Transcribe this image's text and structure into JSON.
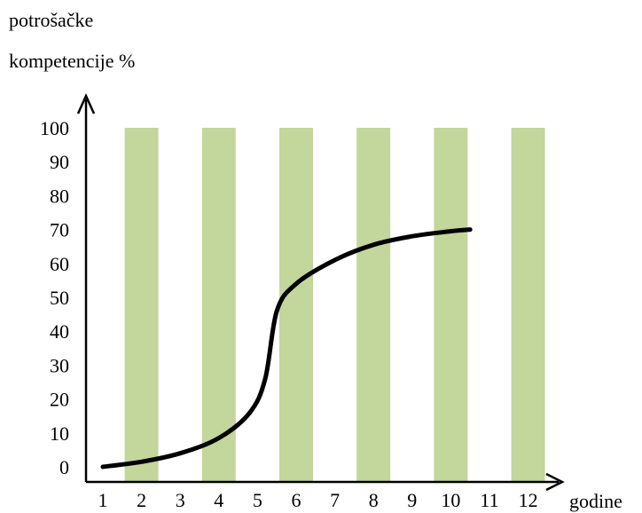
{
  "chart_data": {
    "type": "line",
    "ylabel_lines": [
      "potrošačke",
      "kompetencije %"
    ],
    "xlabel": "godine",
    "x_categories": [
      "1",
      "2",
      "3",
      "4",
      "5",
      "6",
      "7",
      "8",
      "9",
      "10",
      "11",
      "12"
    ],
    "y_ticks": [
      "0",
      "10",
      "20",
      "30",
      "40",
      "50",
      "60",
      "70",
      "80",
      "90",
      "100"
    ],
    "ylim": [
      0,
      100
    ],
    "xlim": [
      1,
      12
    ],
    "bars": {
      "color": "#c3d69b",
      "positions": [
        2,
        4,
        6,
        8,
        10,
        12
      ],
      "values": [
        100,
        100,
        100,
        100,
        100,
        100
      ]
    },
    "series": [
      {
        "color": "#000000",
        "x": [
          1,
          2,
          3,
          4,
          4.8,
          5.2,
          5.5,
          6,
          7,
          8,
          9,
          10,
          10.5
        ],
        "y": [
          0,
          1.5,
          4,
          8.5,
          16,
          26,
          46,
          54,
          61,
          65.5,
          68,
          69.5,
          70
        ]
      }
    ],
    "grid": false,
    "legend": "none"
  }
}
